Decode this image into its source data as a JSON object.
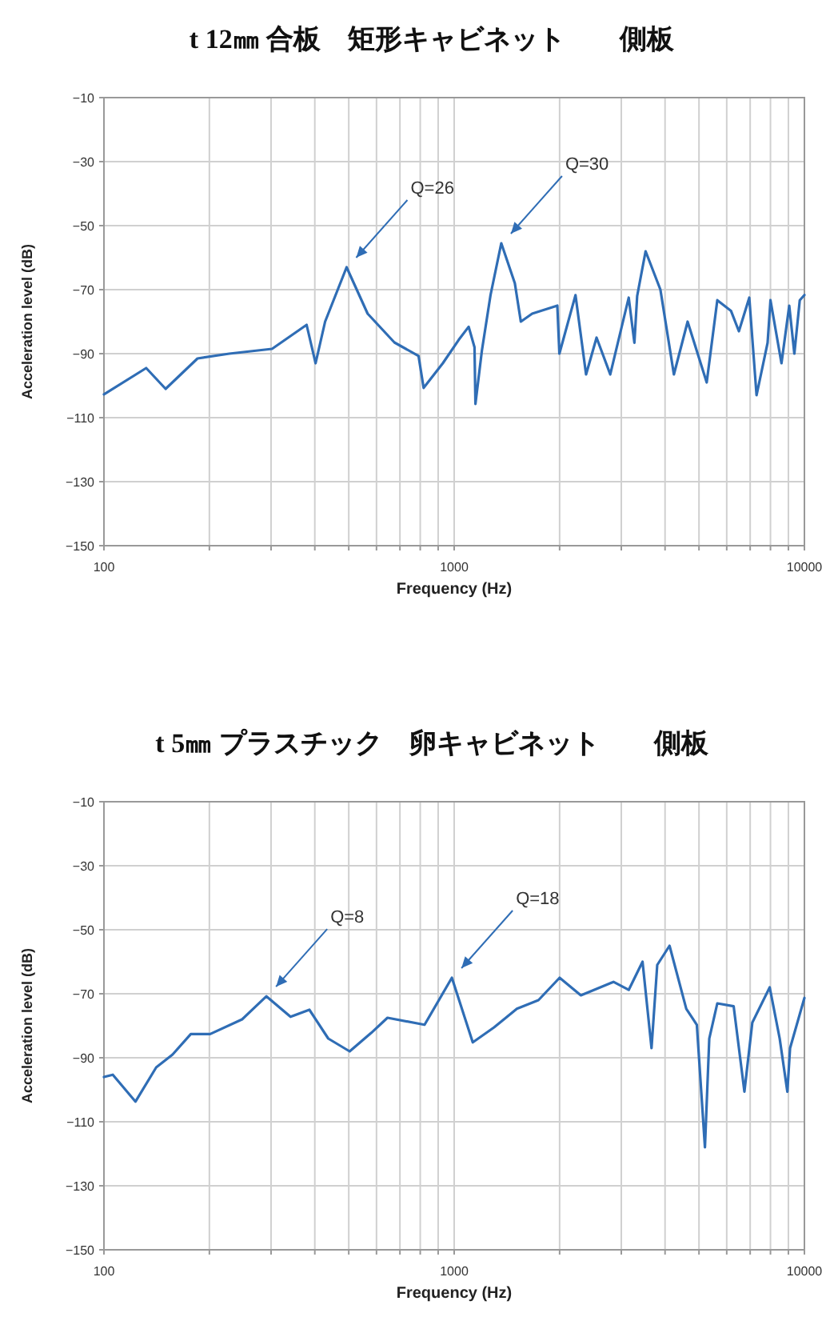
{
  "chart_data": [
    {
      "type": "line",
      "title": "t 12㎜ 合板　矩形キャビネット　　側板",
      "xlabel": "Frequency (Hz)",
      "ylabel": "Acceleration level (dB)",
      "log": "x",
      "grid": true,
      "marker": "none",
      "line_style": "solid",
      "xlim": [
        100,
        10000
      ],
      "ylim": [
        -150,
        -10
      ],
      "xticks": [
        100,
        {
          "value": 200,
          "label": null
        },
        {
          "value": 300,
          "label": null
        },
        {
          "value": 400,
          "label": null
        },
        {
          "value": 500,
          "label": null
        },
        {
          "value": 600,
          "label": null
        },
        {
          "value": 700,
          "label": null
        },
        {
          "value": 800,
          "label": null
        },
        {
          "value": 900,
          "label": null
        },
        1000,
        {
          "value": 2000,
          "label": null
        },
        {
          "value": 3000,
          "label": null
        },
        {
          "value": 4000,
          "label": null
        },
        {
          "value": 5000,
          "label": null
        },
        {
          "value": 6000,
          "label": null
        },
        {
          "value": 7000,
          "label": null
        },
        {
          "value": 8000,
          "label": null
        },
        {
          "value": 9000,
          "label": null
        },
        10000
      ],
      "yticks": [
        -150,
        -130,
        -110,
        -90,
        -70,
        -50,
        -30,
        -10
      ],
      "annotations": [
        {
          "text": "Q=26",
          "x": 493,
          "y": -63
        },
        {
          "text": "Q=30",
          "x": 1363,
          "y": -55.5
        }
      ],
      "series": [
        {
          "color": "#2f6db5",
          "x": [
            100,
            132,
            150,
            185,
            228,
            302,
            379,
            402,
            428,
            493,
            566,
            675,
            791,
            818,
            928,
            1030,
            1100,
            1143,
            1150,
            1200,
            1270,
            1363,
            1490,
            1550,
            1670,
            1970,
            1997,
            2220,
            2380,
            2550,
            2790,
            3150,
            3270,
            3330,
            3520,
            3880,
            4240,
            4640,
            5260,
            5640,
            6170,
            6500,
            6960,
            7300,
            7850,
            8000,
            8600,
            9050,
            9360,
            9700,
            10000
          ],
          "values": [
            -102.7,
            -94.5,
            -101,
            -91.5,
            -90,
            -88.5,
            -81,
            -93,
            -80,
            -63,
            -77.5,
            -86.5,
            -90.7,
            -100.7,
            -93,
            -85.7,
            -81.6,
            -88,
            -105.7,
            -89,
            -71.7,
            -55.5,
            -68,
            -80,
            -77.5,
            -75,
            -90,
            -71.7,
            -96.5,
            -85,
            -96.5,
            -72.5,
            -86.6,
            -72,
            -58,
            -70,
            -96.5,
            -80,
            -99,
            -73.3,
            -76.6,
            -83,
            -72.5,
            -103,
            -86.6,
            -73.3,
            -93,
            -75,
            -90,
            -73.3,
            -71.7
          ]
        }
      ]
    },
    {
      "type": "line",
      "title": "t 5㎜ プラスチック　卵キャビネット　　側板",
      "xlabel": "Frequency (Hz)",
      "ylabel": "Acceleration level (dB)",
      "log": "x",
      "grid": true,
      "marker": "none",
      "line_style": "solid",
      "xlim": [
        100,
        10000
      ],
      "ylim": [
        -150,
        -10
      ],
      "xticks": [
        100,
        {
          "value": 200,
          "label": null
        },
        {
          "value": 300,
          "label": null
        },
        {
          "value": 400,
          "label": null
        },
        {
          "value": 500,
          "label": null
        },
        {
          "value": 600,
          "label": null
        },
        {
          "value": 700,
          "label": null
        },
        {
          "value": 800,
          "label": null
        },
        {
          "value": 900,
          "label": null
        },
        1000,
        {
          "value": 2000,
          "label": null
        },
        {
          "value": 3000,
          "label": null
        },
        {
          "value": 4000,
          "label": null
        },
        {
          "value": 5000,
          "label": null
        },
        {
          "value": 6000,
          "label": null
        },
        {
          "value": 7000,
          "label": null
        },
        {
          "value": 8000,
          "label": null
        },
        {
          "value": 9000,
          "label": null
        },
        10000
      ],
      "yticks": [
        -150,
        -130,
        -110,
        -90,
        -70,
        -50,
        -30,
        -10
      ],
      "annotations": [
        {
          "text": "Q=8",
          "x": 291,
          "y": -70.8
        },
        {
          "text": "Q=18",
          "x": 985,
          "y": -65
        }
      ],
      "series": [
        {
          "color": "#2f6db5",
          "x": [
            100,
            106,
            123,
            141,
            157,
            177,
            201,
            248,
            291,
            341,
            386,
            437,
            503,
            580,
            645,
            823,
            985,
            1130,
            1300,
            1510,
            1740,
            2000,
            2300,
            2850,
            3150,
            3450,
            3660,
            3800,
            4120,
            4600,
            4930,
            5200,
            5350,
            5640,
            6280,
            6740,
            7100,
            7960,
            8500,
            8940,
            9100,
            10000
          ],
          "values": [
            -96,
            -95.3,
            -103.7,
            -93,
            -89,
            -82.6,
            -82.6,
            -78,
            -70.8,
            -77.2,
            -75,
            -84,
            -88,
            -82.2,
            -77.5,
            -79.7,
            -65,
            -85.2,
            -80.5,
            -74.7,
            -72,
            -65,
            -70.5,
            -66.3,
            -68.8,
            -60,
            -87,
            -61,
            -55,
            -74.7,
            -79.7,
            -118,
            -84,
            -73,
            -73.9,
            -100.6,
            -79,
            -68,
            -84,
            -100.6,
            -87,
            -71.3
          ]
        }
      ]
    }
  ]
}
